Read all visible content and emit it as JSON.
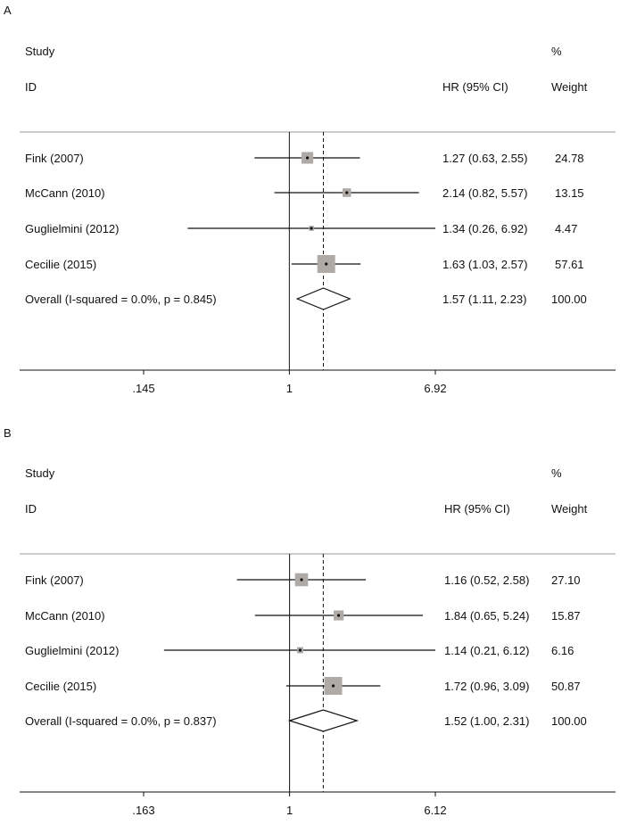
{
  "chart_data": [
    {
      "type": "forest",
      "panel_label": "A",
      "columns": {
        "study_header": "Study",
        "id_header": "ID",
        "hr_header": "HR (95% CI)",
        "pct_header": "%",
        "weight_header": "Weight"
      },
      "axis": {
        "scale": "log",
        "range": [
          0.145,
          6.92
        ],
        "ticks": [
          0.145,
          1,
          6.92
        ],
        "tick_labels": [
          ".145",
          "1",
          "6.92"
        ],
        "null_value": 1
      },
      "studies": [
        {
          "label": "Fink (2007)",
          "hr": 1.27,
          "lower": 0.63,
          "upper": 2.55,
          "ci_text": "1.27 (0.63, 2.55)",
          "weight": "24.78"
        },
        {
          "label": "McCann (2010)",
          "hr": 2.14,
          "lower": 0.82,
          "upper": 5.57,
          "ci_text": "2.14 (0.82, 5.57)",
          "weight": "13.15"
        },
        {
          "label": "Guglielmini (2012)",
          "hr": 1.34,
          "lower": 0.26,
          "upper": 6.92,
          "ci_text": "1.34 (0.26, 6.92)",
          "weight": "4.47"
        },
        {
          "label": "Cecilie (2015)",
          "hr": 1.63,
          "lower": 1.03,
          "upper": 2.57,
          "ci_text": "1.63 (1.03, 2.57)",
          "weight": "57.61"
        }
      ],
      "overall": {
        "label": "Overall  (I-squared = 0.0%, p = 0.845)",
        "hr": 1.57,
        "lower": 1.11,
        "upper": 2.23,
        "ci_text": "1.57 (1.11, 2.23)",
        "weight": "100.00"
      }
    },
    {
      "type": "forest",
      "panel_label": "B",
      "columns": {
        "study_header": "Study",
        "id_header": "ID",
        "hr_header": "HR (95% CI)",
        "pct_header": "%",
        "weight_header": "Weight"
      },
      "axis": {
        "scale": "log",
        "range": [
          0.163,
          6.12
        ],
        "ticks": [
          0.163,
          1,
          6.12
        ],
        "tick_labels": [
          ".163",
          "1",
          "6.12"
        ],
        "null_value": 1
      },
      "studies": [
        {
          "label": "Fink (2007)",
          "hr": 1.16,
          "lower": 0.52,
          "upper": 2.58,
          "ci_text": "1.16 (0.52, 2.58)",
          "weight": "27.10"
        },
        {
          "label": "McCann (2010)",
          "hr": 1.84,
          "lower": 0.65,
          "upper": 5.24,
          "ci_text": "1.84 (0.65, 5.24)",
          "weight": "15.87"
        },
        {
          "label": "Guglielmini (2012)",
          "hr": 1.14,
          "lower": 0.21,
          "upper": 6.12,
          "ci_text": "1.14 (0.21, 6.12)",
          "weight": "6.16"
        },
        {
          "label": "Cecilie (2015)",
          "hr": 1.72,
          "lower": 0.96,
          "upper": 3.09,
          "ci_text": "1.72 (0.96, 3.09)",
          "weight": "50.87"
        }
      ],
      "overall": {
        "label": "Overall  (I-squared = 0.0%, p = 0.837)",
        "hr": 1.52,
        "lower": 1.0,
        "upper": 2.31,
        "ci_text": "1.52 (1.00, 2.31)",
        "weight": "100.00"
      }
    }
  ],
  "colors": {
    "box": "#b0aaa6",
    "line": "#111111",
    "rule": "#999999"
  }
}
